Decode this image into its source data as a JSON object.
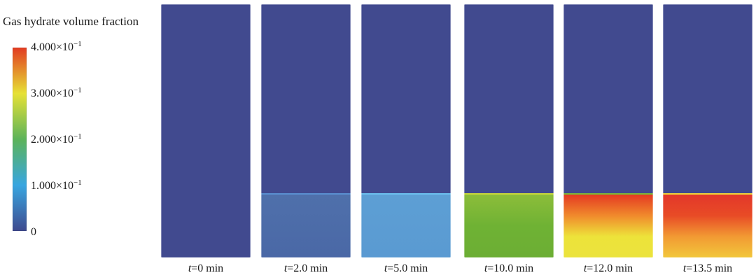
{
  "legend": {
    "title": "Gas hydrate volume fraction",
    "ticks": [
      {
        "mantissa": "4.000",
        "times": "×10",
        "exp": "−1",
        "value": 0.4
      },
      {
        "mantissa": "3.000",
        "times": "×10",
        "exp": "−1",
        "value": 0.3
      },
      {
        "mantissa": "2.000",
        "times": "×10",
        "exp": "−1",
        "value": 0.2
      },
      {
        "mantissa": "1.000",
        "times": "×10",
        "exp": "−1",
        "value": 0.1
      },
      {
        "mantissa": "0",
        "times": "",
        "exp": "",
        "value": 0
      }
    ],
    "range": [
      0,
      0.4
    ],
    "colormap": [
      "#3f4a8f",
      "#38a6e0",
      "#5cb35a",
      "#e6e135",
      "#e23b22"
    ]
  },
  "panels": [
    {
      "var": "t",
      "rest": "=0 min",
      "top_color": "#414a8f",
      "seam_color": "#414a8f",
      "bottom_gradient": [
        "#414a8f",
        "#414a8f"
      ]
    },
    {
      "var": "t",
      "rest": "=2.0 min",
      "top_color": "#414a8f",
      "seam_color": "#5a8fd0",
      "bottom_gradient": [
        "#4f70ab",
        "#4a68a6"
      ]
    },
    {
      "var": "t",
      "rest": "=5.0 min",
      "top_color": "#414a8f",
      "seam_color": "#6cc0ee",
      "bottom_gradient": [
        "#5d9fd4",
        "#5a9ad2"
      ]
    },
    {
      "var": "t",
      "rest": "=10.0 min",
      "top_color": "#414a8f",
      "seam_color": "#c9d83a",
      "bottom_gradient": [
        "#8cbd3a",
        "#6fb234",
        "#6cae34"
      ]
    },
    {
      "var": "t",
      "rest": "=12.0 min",
      "top_color": "#414a8f",
      "seam_color": "#7bb83a",
      "bottom_gradient": [
        "#e43a22",
        "#f08a2c",
        "#ede33a",
        "#ebe33d"
      ]
    },
    {
      "var": "t",
      "rest": "=13.5 min",
      "top_color": "#414a8f",
      "seam_color": "#f0d43a",
      "bottom_gradient": [
        "#e3372a",
        "#e84b26",
        "#f29a33",
        "#f2c73b"
      ]
    }
  ]
}
